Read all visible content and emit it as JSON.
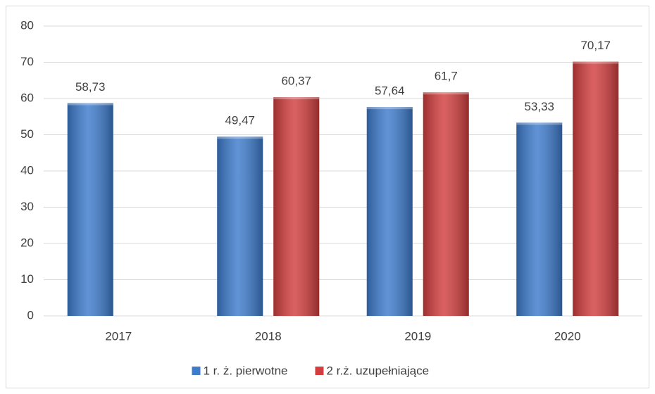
{
  "chart_data": {
    "type": "bar",
    "categories": [
      "2017",
      "2018",
      "2019",
      "2020"
    ],
    "series": [
      {
        "name": "1 r. ż. pierwotne",
        "color": "#3d7bcc",
        "values": [
          58.73,
          49.47,
          57.64,
          53.33
        ],
        "value_labels": [
          "58,73",
          "49,47",
          "57,64",
          "53,33"
        ]
      },
      {
        "name": "2 r.ż. uzupełniające",
        "color": "#d23e3e",
        "values": [
          null,
          60.37,
          61.7,
          70.17
        ],
        "value_labels": [
          null,
          "60,37",
          "61,7",
          "70,17"
        ]
      }
    ],
    "ylim": [
      0,
      80
    ],
    "yticks": [
      0,
      10,
      20,
      30,
      40,
      50,
      60,
      70,
      80
    ],
    "grid": true,
    "legend": "bottom"
  }
}
